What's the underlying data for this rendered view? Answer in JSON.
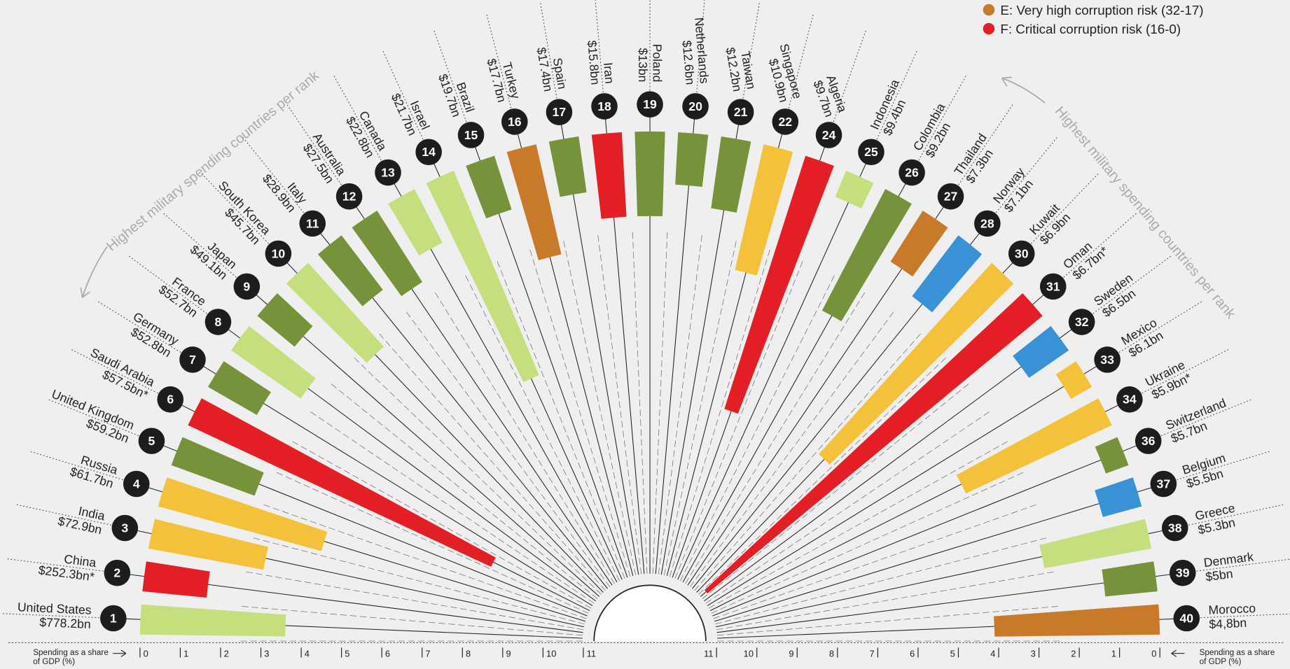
{
  "chart_data": {
    "type": "radial-bar",
    "categories": [
      "United States",
      "China",
      "India",
      "Russia",
      "United Kingdom",
      "Saudi Arabia",
      "Germany",
      "France",
      "Japan",
      "South Korea",
      "Italy",
      "Australia",
      "Canada",
      "Israel",
      "Brazil",
      "Turkey",
      "Spain",
      "Iran",
      "Poland",
      "Netherlands",
      "Taiwan",
      "Singapore",
      "Algeria",
      "Indonesia",
      "Colombia",
      "Thailand",
      "Norway",
      "Kuwait",
      "Oman",
      "Sweden",
      "Mexico",
      "Ukraine",
      "Switzerland",
      "Belgium",
      "Greece",
      "Denmark",
      "Morocco"
    ],
    "ranks": [
      1,
      2,
      3,
      4,
      5,
      6,
      7,
      8,
      9,
      10,
      11,
      12,
      13,
      14,
      15,
      16,
      17,
      18,
      19,
      20,
      21,
      22,
      24,
      25,
      26,
      27,
      28,
      30,
      31,
      32,
      33,
      34,
      36,
      37,
      38,
      39,
      40
    ],
    "spending": [
      "$778.2bn",
      "$252.3bn*",
      "$72.9bn",
      "$61.7bn",
      "$59.2bn",
      "$57.5bn*",
      "$52.8bn",
      "$52.7bn",
      "$49.1bn",
      "$45.7bn",
      "$28.9bn",
      "$27.5bn",
      "$22.8bn",
      "$21.7bn",
      "$19.7bn",
      "$17.7bn",
      "$17.4bn",
      "$15.8bn",
      "$13bn",
      "$12.6bn",
      "$12.2bn",
      "$10.9bn",
      "$9.7bn",
      "$9.4bn",
      "$9.2bn",
      "$7.3bn",
      "$7.1bn",
      "$6.9bn",
      "$6.7bn*",
      "$6.5bn",
      "$6.1bn",
      "$5.9bn*",
      "$5.7bn",
      "$5.5bn",
      "$5.3bn",
      "$5bn",
      "$4,8bn"
    ],
    "values": [
      3.6,
      1.6,
      2.9,
      4.2,
      2.2,
      8.3,
      1.4,
      2.1,
      1.2,
      2.8,
      1.7,
      2.1,
      1.5,
      5.5,
      1.4,
      2.8,
      1.4,
      2.1,
      2.1,
      1.3,
      1.8,
      3.2,
      6.6,
      0.7,
      3.4,
      1.5,
      1.9,
      6.4,
      10.8,
      1.2,
      0.6,
      4.0,
      0.6,
      1.0,
      2.7,
      1.3,
      4.1
    ],
    "colors": [
      "#c5df7f",
      "#e31e25",
      "#f4c23a",
      "#f4c23a",
      "#76923a",
      "#e31e25",
      "#76923a",
      "#c5df7f",
      "#76923a",
      "#c5df7f",
      "#76923a",
      "#76923a",
      "#c5df7f",
      "#c5df7f",
      "#76923a",
      "#c87a2a",
      "#76923a",
      "#e31e25",
      "#76923a",
      "#76923a",
      "#76923a",
      "#f4c23a",
      "#e31e25",
      "#c5df7f",
      "#76923a",
      "#c87a2a",
      "#3a92d6",
      "#f4c23a",
      "#e31e25",
      "#3a92d6",
      "#f4c23a",
      "#f4c23a",
      "#76923a",
      "#3a92d6",
      "#c5df7f",
      "#76923a",
      "#c87a2a"
    ],
    "xlim": [
      0,
      11
    ],
    "xticks": [
      0,
      1,
      2,
      3,
      4,
      5,
      6,
      7,
      8,
      9,
      10,
      11
    ],
    "xlabel_lines": [
      "Spending as a share",
      "of GDP (%)"
    ],
    "annotation": "Highest military spending countries per rank",
    "legend": [
      {
        "label": "E: Very high corruption risk (32-17)",
        "color": "#c87a2a"
      },
      {
        "label": "F: Critical corruption risk (16-0)",
        "color": "#e31e25"
      }
    ]
  }
}
